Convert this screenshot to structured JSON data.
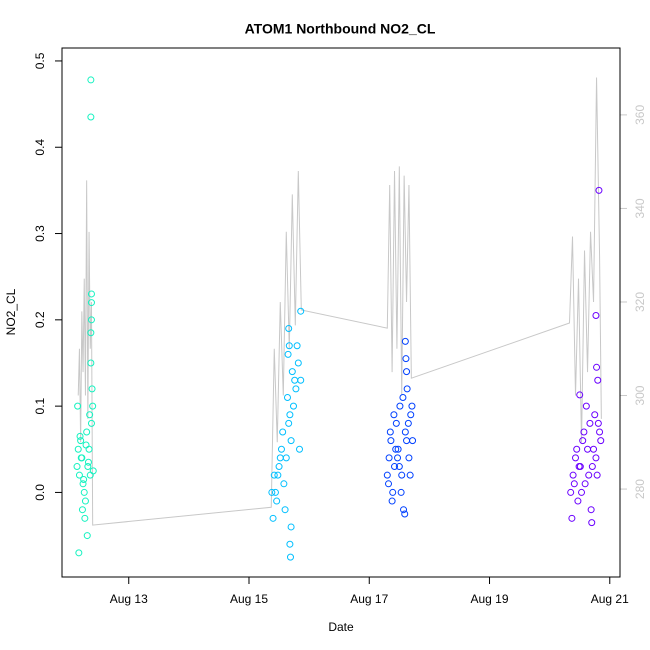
{
  "chart_data": {
    "type": "scatter",
    "title": "ATOM1 Northbound NO2_CL",
    "x_label": "Date",
    "y_label": "NO2_CL",
    "xlim": [
      11.89,
      21.17
    ],
    "xticks": [
      {
        "value": 13,
        "label": "Aug 13"
      },
      {
        "value": 15,
        "label": "Aug 15"
      },
      {
        "value": 17,
        "label": "Aug 17"
      },
      {
        "value": 19,
        "label": "Aug 19"
      },
      {
        "value": 21,
        "label": "Aug 21"
      }
    ],
    "ylim": [
      -0.098,
      0.515
    ],
    "yticks": [
      {
        "value": 0,
        "label": "0.0"
      },
      0.1,
      0.2,
      0.3,
      0.4,
      0.5
    ],
    "y2lim": [
      261.2,
      374.3
    ],
    "y2ticks": [
      280,
      300,
      320,
      340,
      360
    ],
    "y2_color": "#c8c8c8",
    "series": [
      {
        "type": "scatter",
        "color": "#14F2C0",
        "x": [
          12.14,
          12.16,
          12.18,
          12.2,
          12.22,
          12.24,
          12.26,
          12.28,
          12.3,
          12.32,
          12.34,
          12.36,
          12.38,
          12.4,
          12.15,
          12.19,
          12.23,
          12.27,
          12.31,
          12.35,
          12.39,
          12.17,
          12.21,
          12.25,
          12.29,
          12.33,
          12.37,
          12.41,
          12.37,
          12.37,
          12.38,
          12.38,
          12.37,
          12.38
        ],
        "values": [
          0.03,
          0.05,
          0.02,
          0.06,
          0.04,
          0.01,
          0.0,
          -0.01,
          0.07,
          0.03,
          0.05,
          0.02,
          0.08,
          0.1,
          0.1,
          0.065,
          -0.02,
          -0.03,
          -0.05,
          0.09,
          0.12,
          -0.07,
          0.04,
          0.015,
          0.055,
          0.035,
          0.15,
          0.025,
          0.478,
          0.435,
          0.23,
          0.2,
          0.185,
          0.22
        ]
      },
      {
        "type": "scatter",
        "color": "#00BFFF",
        "x": [
          15.38,
          15.42,
          15.46,
          15.5,
          15.54,
          15.58,
          15.62,
          15.66,
          15.7,
          15.74,
          15.78,
          15.82,
          15.86,
          15.4,
          15.48,
          15.56,
          15.64,
          15.72,
          15.8,
          15.84,
          15.44,
          15.52,
          15.6,
          15.68,
          15.76,
          15.66,
          15.67,
          15.68,
          15.69,
          15.86,
          15.7,
          15.65
        ],
        "values": [
          0.0,
          0.02,
          -0.01,
          0.03,
          0.05,
          0.01,
          0.04,
          0.08,
          0.06,
          0.1,
          0.12,
          0.15,
          0.21,
          -0.03,
          0.02,
          0.07,
          0.11,
          0.14,
          0.17,
          0.05,
          0.0,
          0.04,
          -0.02,
          0.09,
          0.13,
          0.19,
          0.17,
          -0.06,
          -0.075,
          0.13,
          -0.04,
          0.16
        ]
      },
      {
        "type": "scatter",
        "color": "#0040FF",
        "x": [
          17.3,
          17.33,
          17.36,
          17.39,
          17.42,
          17.45,
          17.48,
          17.51,
          17.54,
          17.57,
          17.6,
          17.63,
          17.66,
          17.69,
          17.72,
          17.32,
          17.38,
          17.44,
          17.5,
          17.56,
          17.62,
          17.68,
          17.35,
          17.41,
          17.47,
          17.53,
          17.59,
          17.65,
          17.71,
          17.6,
          17.61,
          17.62
        ],
        "values": [
          0.02,
          0.04,
          0.06,
          0.0,
          0.03,
          0.08,
          0.05,
          0.1,
          0.02,
          -0.02,
          0.07,
          0.12,
          0.04,
          0.09,
          0.06,
          0.01,
          -0.01,
          0.05,
          0.03,
          0.11,
          0.06,
          0.02,
          0.07,
          0.09,
          0.04,
          0.0,
          -0.025,
          0.08,
          0.1,
          0.175,
          0.155,
          0.14
        ]
      },
      {
        "type": "scatter",
        "color": "#6A00FF",
        "x": [
          20.35,
          20.39,
          20.43,
          20.47,
          20.51,
          20.55,
          20.59,
          20.63,
          20.67,
          20.71,
          20.75,
          20.79,
          20.83,
          20.37,
          20.45,
          20.53,
          20.61,
          20.69,
          20.77,
          20.85,
          20.41,
          20.49,
          20.57,
          20.65,
          20.73,
          20.81,
          20.77,
          20.82,
          20.78,
          20.8,
          20.7,
          20.5
        ],
        "values": [
          0.0,
          0.02,
          0.04,
          -0.01,
          0.03,
          0.06,
          0.01,
          0.05,
          0.08,
          0.03,
          0.09,
          0.02,
          0.07,
          -0.03,
          0.05,
          0.0,
          0.1,
          -0.02,
          0.04,
          0.06,
          0.01,
          0.03,
          0.07,
          0.02,
          0.05,
          0.08,
          0.205,
          0.35,
          0.145,
          0.13,
          -0.035,
          0.113
        ]
      },
      {
        "type": "line",
        "axis": "y2",
        "color": "#c8c8c8",
        "x": [
          12.16,
          12.18,
          12.2,
          12.22,
          12.24,
          12.26,
          12.28,
          12.3,
          12.32,
          12.34,
          12.36,
          12.38,
          12.4,
          15.37,
          15.42,
          15.47,
          15.52,
          15.57,
          15.62,
          15.67,
          15.72,
          15.77,
          15.82,
          15.87,
          17.3,
          17.34,
          17.38,
          17.42,
          17.46,
          17.5,
          17.54,
          17.58,
          17.62,
          17.66,
          17.7,
          20.33,
          20.38,
          20.43,
          20.48,
          20.53,
          20.58,
          20.63,
          20.68,
          20.73,
          20.78,
          20.83,
          20.86
        ],
        "values": [
          300,
          310,
          290,
          318,
          305,
          325,
          300,
          346,
          295,
          335,
          310,
          320,
          272.3,
          276.1,
          310,
          290,
          320,
          300,
          335,
          310,
          343,
          315,
          348,
          318.3,
          314.4,
          345,
          305,
          348,
          310,
          349,
          300,
          347,
          320,
          345,
          303.7,
          315.5,
          334,
          300,
          325,
          290,
          331,
          305,
          335,
          320,
          368,
          330,
          295
        ]
      }
    ]
  }
}
